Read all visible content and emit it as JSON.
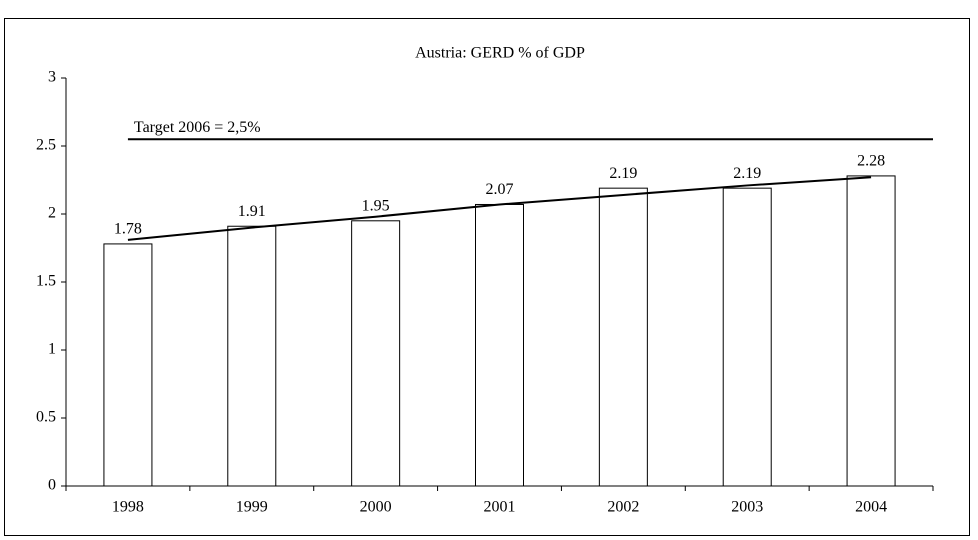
{
  "chart_data": {
    "type": "bar",
    "title": "Austria: GERD % of GDP",
    "categories": [
      "1998",
      "1999",
      "2000",
      "2001",
      "2002",
      "2003",
      "2004"
    ],
    "values": [
      1.78,
      1.91,
      1.95,
      2.07,
      2.19,
      2.19,
      2.28
    ],
    "color": "#ffffff",
    "ylim": [
      0,
      3
    ],
    "yticks": [
      0,
      0.5,
      1,
      1.5,
      2,
      2.5,
      3
    ],
    "trend": {
      "values": [
        1.81,
        1.9,
        1.98,
        2.07,
        2.14,
        2.21,
        2.27
      ],
      "color": "#000000"
    },
    "target": {
      "label": "Target 2006 = 2,5%",
      "value": 2.55,
      "color": "#000000"
    }
  }
}
